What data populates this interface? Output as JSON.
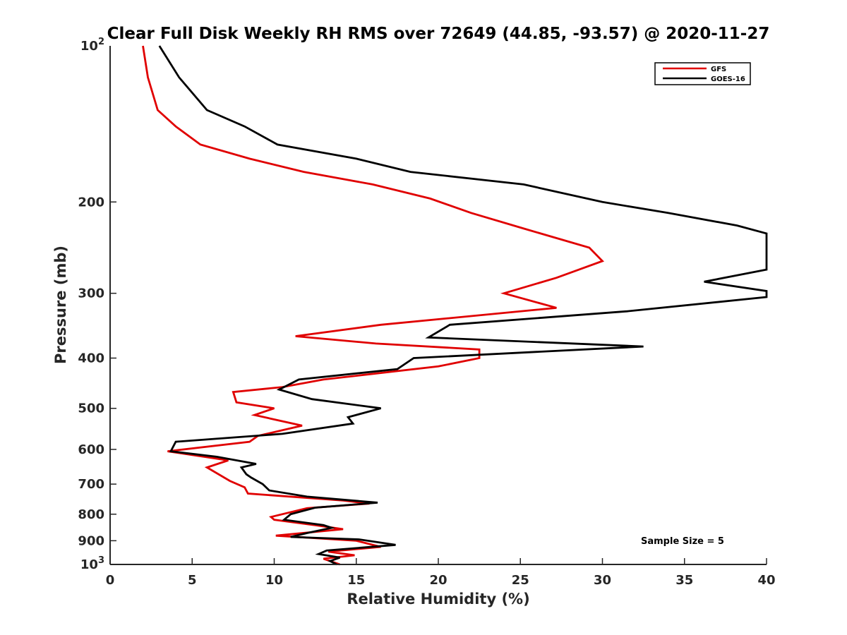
{
  "chart_data": {
    "type": "line",
    "title": "Clear Full Disk Weekly RH RMS over 72649 (44.85, -93.57) @ 2020-11-27",
    "xlabel": "Relative Humidity (%)",
    "ylabel": "Pressure (mb)",
    "xlim": [
      0,
      40
    ],
    "ylim": [
      100,
      1000
    ],
    "yscale": "log",
    "y_reversed": true,
    "grid": false,
    "legend_position": "top-right",
    "x_ticks": [
      "0",
      "5",
      "10",
      "15",
      "20",
      "25",
      "30",
      "35",
      "40"
    ],
    "y_ticks": [
      {
        "value": 200,
        "label": "200"
      },
      {
        "value": 300,
        "label": "300"
      },
      {
        "value": 400,
        "label": "400"
      },
      {
        "value": 500,
        "label": "500"
      },
      {
        "value": 600,
        "label": "600"
      },
      {
        "value": 700,
        "label": "700"
      },
      {
        "value": 800,
        "label": "800"
      },
      {
        "value": 900,
        "label": "900"
      }
    ],
    "y_ticks_power": [
      {
        "value": 100,
        "base": "10",
        "exp": "2"
      },
      {
        "value": 1000,
        "base": "10",
        "exp": "3"
      }
    ],
    "annotation": "Sample Size = 5",
    "series": [
      {
        "name": "GFS",
        "color": "#e00000",
        "points": [
          [
            2.0,
            100
          ],
          [
            2.3,
            115
          ],
          [
            2.9,
            133
          ],
          [
            4.0,
            143
          ],
          [
            5.5,
            155
          ],
          [
            8.5,
            165
          ],
          [
            11.8,
            175
          ],
          [
            16.0,
            185
          ],
          [
            19.5,
            197
          ],
          [
            22.0,
            210
          ],
          [
            25.2,
            225
          ],
          [
            29.2,
            245
          ],
          [
            30.0,
            260
          ],
          [
            27.2,
            280
          ],
          [
            24.0,
            300
          ],
          [
            27.2,
            320
          ],
          [
            16.5,
            345
          ],
          [
            11.3,
            363
          ],
          [
            16.2,
            375
          ],
          [
            22.5,
            385
          ],
          [
            22.5,
            400
          ],
          [
            20.0,
            415
          ],
          [
            13.0,
            440
          ],
          [
            10.5,
            455
          ],
          [
            7.5,
            465
          ],
          [
            7.7,
            487
          ],
          [
            10.0,
            500
          ],
          [
            8.8,
            515
          ],
          [
            11.7,
            540
          ],
          [
            9.0,
            565
          ],
          [
            8.5,
            580
          ],
          [
            3.5,
            605
          ],
          [
            7.2,
            630
          ],
          [
            5.9,
            650
          ],
          [
            7.3,
            690
          ],
          [
            8.2,
            710
          ],
          [
            8.4,
            730
          ],
          [
            14.2,
            753
          ],
          [
            15.8,
            763
          ],
          [
            12.0,
            779
          ],
          [
            9.8,
            810
          ],
          [
            10.0,
            820
          ],
          [
            12.5,
            840
          ],
          [
            14.2,
            855
          ],
          [
            10.1,
            880
          ],
          [
            15.0,
            900
          ],
          [
            16.5,
            925
          ],
          [
            13.3,
            945
          ],
          [
            14.9,
            960
          ],
          [
            13.0,
            975
          ],
          [
            14.0,
            1000
          ]
        ]
      },
      {
        "name": "GOES-16",
        "color": "#000000",
        "points": [
          [
            3.0,
            100
          ],
          [
            4.2,
            115
          ],
          [
            5.9,
            133
          ],
          [
            8.2,
            143
          ],
          [
            10.2,
            155
          ],
          [
            15.0,
            165
          ],
          [
            18.3,
            175
          ],
          [
            25.2,
            185
          ],
          [
            30.0,
            200
          ],
          [
            34.0,
            210
          ],
          [
            38.2,
            222
          ],
          [
            40.0,
            230
          ],
          [
            40.0,
            270
          ],
          [
            36.2,
            285
          ],
          [
            40.0,
            297
          ],
          [
            40.0,
            305
          ],
          [
            31.5,
            325
          ],
          [
            20.7,
            345
          ],
          [
            19.4,
            365
          ],
          [
            32.5,
            380
          ],
          [
            18.5,
            400
          ],
          [
            17.5,
            420
          ],
          [
            11.5,
            440
          ],
          [
            10.3,
            460
          ],
          [
            12.3,
            480
          ],
          [
            16.5,
            500
          ],
          [
            14.5,
            520
          ],
          [
            14.8,
            535
          ],
          [
            10.5,
            560
          ],
          [
            4.0,
            580
          ],
          [
            3.7,
            605
          ],
          [
            6.5,
            620
          ],
          [
            8.9,
            640
          ],
          [
            8.0,
            650
          ],
          [
            8.3,
            670
          ],
          [
            8.6,
            680
          ],
          [
            9.3,
            700
          ],
          [
            9.7,
            720
          ],
          [
            12.0,
            740
          ],
          [
            16.3,
            760
          ],
          [
            12.5,
            777
          ],
          [
            11.0,
            800
          ],
          [
            10.6,
            820
          ],
          [
            13.0,
            840
          ],
          [
            13.5,
            850
          ],
          [
            12.0,
            870
          ],
          [
            11.0,
            885
          ],
          [
            15.2,
            895
          ],
          [
            17.4,
            917
          ],
          [
            13.2,
            940
          ],
          [
            12.7,
            955
          ],
          [
            14.0,
            970
          ],
          [
            13.4,
            985
          ],
          [
            13.8,
            1000
          ]
        ]
      }
    ]
  }
}
